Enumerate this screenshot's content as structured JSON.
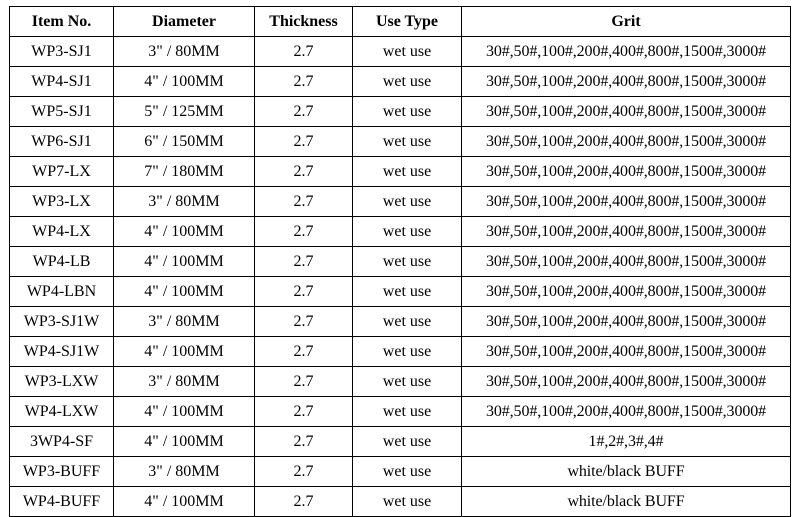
{
  "table": {
    "headers": [
      "Item No.",
      "Diameter",
      "Thickness",
      "Use Type",
      "Grit"
    ],
    "rows": [
      [
        "WP3-SJ1",
        "3\" / 80MM",
        "2.7",
        "wet use",
        "30#,50#,100#,200#,400#,800#,1500#,3000#"
      ],
      [
        "WP4-SJ1",
        "4\" / 100MM",
        "2.7",
        "wet use",
        "30#,50#,100#,200#,400#,800#,1500#,3000#"
      ],
      [
        "WP5-SJ1",
        "5\" / 125MM",
        "2.7",
        "wet use",
        "30#,50#,100#,200#,400#,800#,1500#,3000#"
      ],
      [
        "WP6-SJ1",
        "6\" / 150MM",
        "2.7",
        "wet use",
        "30#,50#,100#,200#,400#,800#,1500#,3000#"
      ],
      [
        "WP7-LX",
        "7\" / 180MM",
        "2.7",
        "wet use",
        "30#,50#,100#,200#,400#,800#,1500#,3000#"
      ],
      [
        "WP3-LX",
        "3\" / 80MM",
        "2.7",
        "wet use",
        "30#,50#,100#,200#,400#,800#,1500#,3000#"
      ],
      [
        "WP4-LX",
        "4\" / 100MM",
        "2.7",
        "wet use",
        "30#,50#,100#,200#,400#,800#,1500#,3000#"
      ],
      [
        "WP4-LB",
        "4\" / 100MM",
        "2.7",
        "wet use",
        "30#,50#,100#,200#,400#,800#,1500#,3000#"
      ],
      [
        "WP4-LBN",
        "4\" / 100MM",
        "2.7",
        "wet use",
        "30#,50#,100#,200#,400#,800#,1500#,3000#"
      ],
      [
        "WP3-SJ1W",
        "3\" / 80MM",
        "2.7",
        "wet use",
        "30#,50#,100#,200#,400#,800#,1500#,3000#"
      ],
      [
        "WP4-SJ1W",
        "4\" / 100MM",
        "2.7",
        "wet use",
        "30#,50#,100#,200#,400#,800#,1500#,3000#"
      ],
      [
        "WP3-LXW",
        "3\" / 80MM",
        "2.7",
        "wet use",
        "30#,50#,100#,200#,400#,800#,1500#,3000#"
      ],
      [
        "WP4-LXW",
        "4\" / 100MM",
        "2.7",
        "wet use",
        "30#,50#,100#,200#,400#,800#,1500#,3000#"
      ],
      [
        "3WP4-SF",
        "4\" / 100MM",
        "2.7",
        "wet use",
        "1#,2#,3#,4#"
      ],
      [
        "WP3-BUFF",
        "3\" / 80MM",
        "2.7",
        "wet use",
        "white/black BUFF"
      ],
      [
        "WP4-BUFF",
        "4\" / 100MM",
        "2.7",
        "wet use",
        "white/black BUFF"
      ]
    ]
  }
}
